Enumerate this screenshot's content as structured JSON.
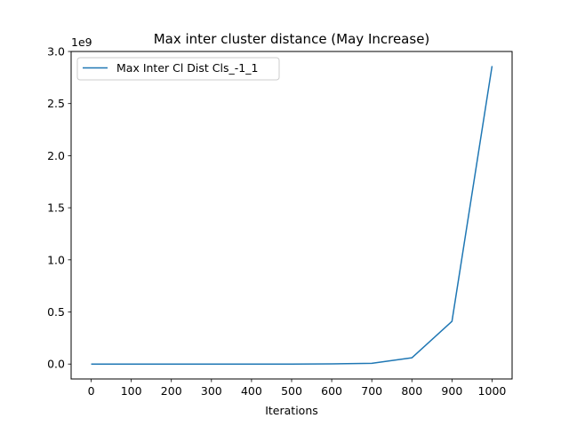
{
  "chart_data": {
    "type": "line",
    "title": "Max inter cluster distance (May Increase)",
    "xlabel": "Iterations",
    "ylabel": "",
    "y_offset_label": "1e9",
    "x_ticks": [
      "0",
      "100",
      "200",
      "300",
      "400",
      "500",
      "600",
      "700",
      "800",
      "900",
      "1000"
    ],
    "y_ticks": [
      "0.0",
      "0.5",
      "1.0",
      "1.5",
      "2.0",
      "2.5",
      "3.0"
    ],
    "xlim": [
      -50,
      1050
    ],
    "ylim": [
      -0.143,
      3.0
    ],
    "y_scale": 1000000000,
    "grid": false,
    "legend_position": "upper left",
    "series": [
      {
        "name": "Max Inter Cl Dist Cls_-1_1",
        "color": "#1f77b4",
        "x": [
          0,
          100,
          200,
          300,
          400,
          500,
          600,
          700,
          800,
          900,
          1000
        ],
        "y": [
          0.0,
          0.0,
          0.0,
          0.0,
          0.0,
          0.0,
          0.002,
          0.007,
          0.06,
          0.41,
          2.86
        ]
      }
    ]
  }
}
